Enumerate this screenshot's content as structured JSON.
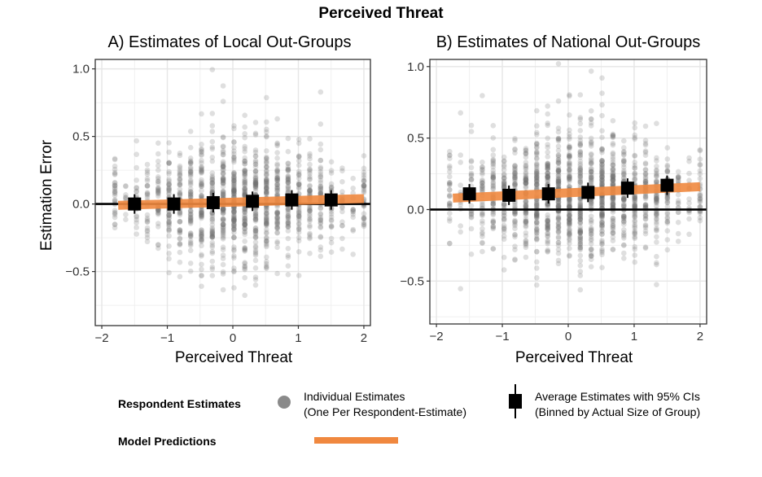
{
  "title": "Perceived Threat",
  "ylabel": "Estimation Error",
  "colors": {
    "point": "#6e6e6e",
    "model": "#f0883f",
    "avg": "#000000",
    "grid": "#e6e6e6"
  },
  "chart_data": [
    {
      "type": "scatter",
      "title": "A) Estimates of Local Out-Groups",
      "xlabel": "Perceived Threat",
      "ylabel": "Estimation Error",
      "xlim": [
        -2.1,
        2.1
      ],
      "ylim": [
        -0.9,
        1.07
      ],
      "xticks": [
        -2,
        -1,
        0,
        1,
        2
      ],
      "xtick_labels": [
        "−2",
        "−1",
        "0",
        "1",
        "2"
      ],
      "yticks": [
        -0.5,
        0.0,
        0.5,
        1.0
      ],
      "ytick_labels": [
        "−0.5",
        "0.0",
        "0.5",
        "1.0"
      ],
      "model_line": {
        "x": [
          -1.75,
          2.0
        ],
        "y": [
          -0.01,
          0.04
        ]
      },
      "average_estimates": [
        {
          "x": -1.5,
          "y": 0.0
        },
        {
          "x": -0.9,
          "y": 0.0
        },
        {
          "x": -0.3,
          "y": 0.01
        },
        {
          "x": 0.3,
          "y": 0.02
        },
        {
          "x": 0.9,
          "y": 0.03
        },
        {
          "x": 1.5,
          "y": 0.03
        }
      ],
      "scatter": {
        "n": 1400,
        "y_center": 0.02,
        "y_spread": 0.2,
        "x_levels": 24,
        "seed": 11
      }
    },
    {
      "type": "scatter",
      "title": "B) Estimates of National Out-Groups",
      "xlabel": "Perceived Threat",
      "ylabel": "",
      "xlim": [
        -2.1,
        2.1
      ],
      "ylim": [
        -0.8,
        1.05
      ],
      "xticks": [
        -2,
        -1,
        0,
        1,
        2
      ],
      "xtick_labels": [
        "−2",
        "−1",
        "0",
        "1",
        "2"
      ],
      "yticks": [
        -0.5,
        0.0,
        0.5,
        1.0
      ],
      "ytick_labels": [
        "−0.5",
        "0.0",
        "0.5",
        "1.0"
      ],
      "model_line": {
        "x": [
          -1.75,
          2.0
        ],
        "y": [
          0.08,
          0.16
        ]
      },
      "average_estimates": [
        {
          "x": -1.5,
          "y": 0.11
        },
        {
          "x": -0.9,
          "y": 0.1
        },
        {
          "x": -0.3,
          "y": 0.11
        },
        {
          "x": 0.3,
          "y": 0.12
        },
        {
          "x": 0.9,
          "y": 0.15
        },
        {
          "x": 1.5,
          "y": 0.17
        }
      ],
      "scatter": {
        "n": 1600,
        "y_center": 0.1,
        "y_spread": 0.2,
        "x_levels": 24,
        "seed": 29
      }
    }
  ],
  "legend": {
    "respondent_heading": "Respondent Estimates",
    "model_heading": "Model Predictions",
    "individual_line1": "Individual Estimates",
    "individual_line2": "(One Per Respondent-Estimate)",
    "average_line1": "Average Estimates with 95% CIs",
    "average_line2": "(Binned by Actual Size of Group)"
  }
}
